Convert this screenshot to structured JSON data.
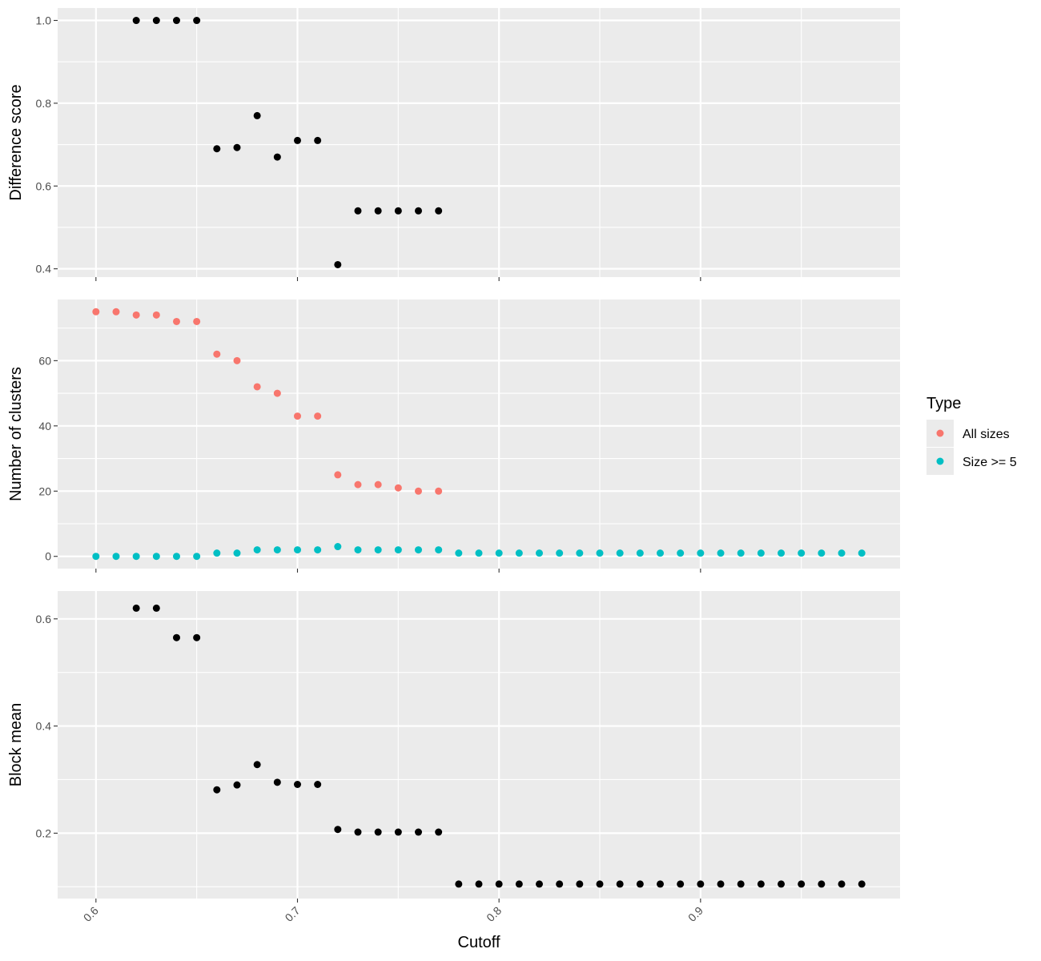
{
  "chart_data": {
    "type": "scatter",
    "xlabel": "Cutoff",
    "x_ticks": [
      "0.6",
      "0.7",
      "0.8",
      "0.9"
    ],
    "xlim": [
      0.581,
      0.999
    ],
    "colors": {
      "panel_bg": "#ebebeb",
      "grid": "#ffffff",
      "point": "#000000",
      "all_sizes": "#f8766d",
      "size_ge_5": "#00bfc4"
    },
    "legend": {
      "title": "Type",
      "position": "right",
      "entries": [
        {
          "label": "All sizes",
          "color": "#f8766d"
        },
        {
          "label": "Size >= 5",
          "color": "#00bfc4"
        }
      ]
    },
    "panels": [
      {
        "ylabel": "Difference score",
        "ylim": [
          0.38,
          1.03
        ],
        "y_ticks": [
          "0.4",
          "0.6",
          "0.8",
          "1.0"
        ],
        "series": [
          {
            "color": "#000000",
            "x": [
              0.62,
              0.63,
              0.64,
              0.65,
              0.66,
              0.67,
              0.68,
              0.69,
              0.7,
              0.71,
              0.72,
              0.73,
              0.74,
              0.75,
              0.76,
              0.77
            ],
            "y": [
              1.0,
              1.0,
              1.0,
              1.0,
              0.69,
              0.693,
              0.77,
              0.67,
              0.71,
              0.71,
              0.41,
              0.54,
              0.54,
              0.54,
              0.54,
              0.54
            ]
          }
        ]
      },
      {
        "ylabel": "Number of clusters",
        "ylim": [
          -3.75,
          78.75
        ],
        "y_ticks": [
          "0",
          "20",
          "40",
          "60"
        ],
        "series": [
          {
            "name": "All sizes",
            "color": "#f8766d",
            "x": [
              0.6,
              0.61,
              0.62,
              0.63,
              0.64,
              0.65,
              0.66,
              0.67,
              0.68,
              0.69,
              0.7,
              0.71,
              0.72,
              0.73,
              0.74,
              0.75,
              0.76,
              0.77
            ],
            "y": [
              75,
              75,
              74,
              74,
              72,
              72,
              62,
              60,
              52,
              50,
              43,
              43,
              25,
              22,
              22,
              21,
              20,
              20
            ]
          },
          {
            "name": "Size >= 5",
            "color": "#00bfc4",
            "x": [
              0.6,
              0.61,
              0.62,
              0.63,
              0.64,
              0.65,
              0.66,
              0.67,
              0.68,
              0.69,
              0.7,
              0.71,
              0.72,
              0.73,
              0.74,
              0.75,
              0.76,
              0.77,
              0.78,
              0.79,
              0.8,
              0.81,
              0.82,
              0.83,
              0.84,
              0.85,
              0.86,
              0.87,
              0.88,
              0.89,
              0.9,
              0.91,
              0.92,
              0.93,
              0.94,
              0.95,
              0.96,
              0.97,
              0.98
            ],
            "y": [
              0,
              0,
              0,
              0,
              0,
              0,
              1,
              1,
              2,
              2,
              2,
              2,
              3,
              2,
              2,
              2,
              2,
              2,
              1,
              1,
              1,
              1,
              1,
              1,
              1,
              1,
              1,
              1,
              1,
              1,
              1,
              1,
              1,
              1,
              1,
              1,
              1,
              1,
              1
            ]
          }
        ]
      },
      {
        "ylabel": "Block mean",
        "ylim": [
          0.078,
          0.652
        ],
        "y_ticks": [
          "0.2",
          "0.4",
          "0.6"
        ],
        "series": [
          {
            "color": "#000000",
            "x": [
              0.62,
              0.63,
              0.64,
              0.65,
              0.66,
              0.67,
              0.68,
              0.69,
              0.7,
              0.71,
              0.72,
              0.73,
              0.74,
              0.75,
              0.76,
              0.77,
              0.78,
              0.79,
              0.8,
              0.81,
              0.82,
              0.83,
              0.84,
              0.85,
              0.86,
              0.87,
              0.88,
              0.89,
              0.9,
              0.91,
              0.92,
              0.93,
              0.94,
              0.95,
              0.96,
              0.97,
              0.98
            ],
            "y": [
              0.62,
              0.62,
              0.565,
              0.565,
              0.281,
              0.29,
              0.328,
              0.295,
              0.291,
              0.291,
              0.207,
              0.202,
              0.202,
              0.202,
              0.202,
              0.202,
              0.105,
              0.105,
              0.105,
              0.105,
              0.105,
              0.105,
              0.105,
              0.105,
              0.105,
              0.105,
              0.105,
              0.105,
              0.105,
              0.105,
              0.105,
              0.105,
              0.105,
              0.105,
              0.105,
              0.105,
              0.105
            ]
          }
        ]
      }
    ]
  }
}
